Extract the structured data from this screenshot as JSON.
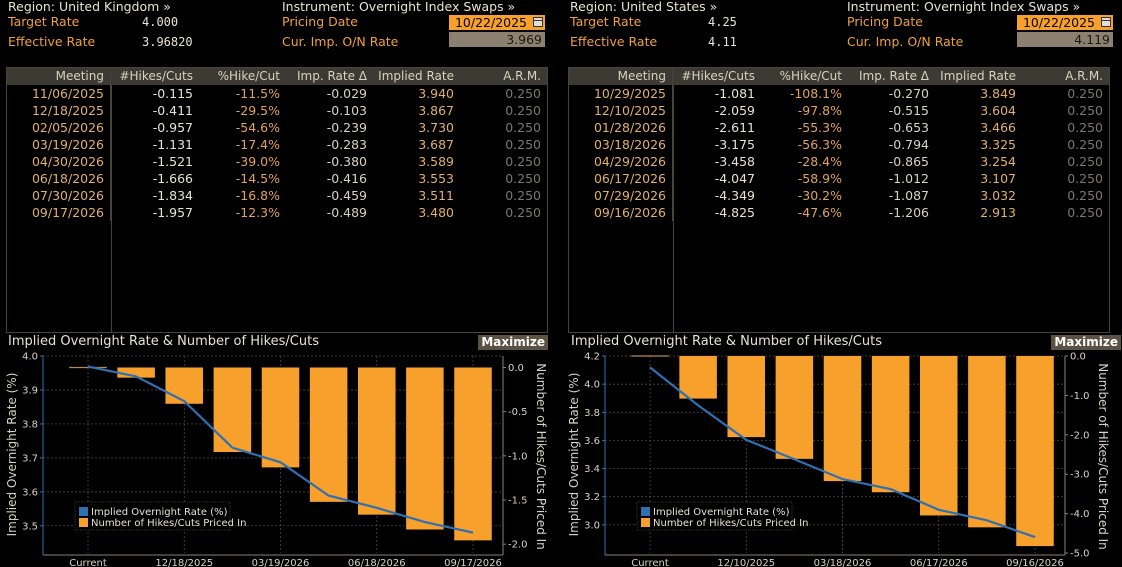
{
  "panels": [
    {
      "id": "uk",
      "region_label": "Region: United Kingdom »",
      "instrument_label": "Instrument: Overnight Index Swaps »",
      "target_rate_label": "Target Rate",
      "target_rate_value": "4.000",
      "effective_rate_label": "Effective Rate",
      "effective_rate_value": "3.96820",
      "pricing_date_label": "Pricing Date",
      "pricing_date_value": "10/22/2025",
      "cur_imp_label": "Cur. Imp. O/N Rate",
      "cur_imp_value": "3.969",
      "table": {
        "columns": [
          "Meeting",
          "#Hikes/Cuts",
          "%Hike/Cut",
          "Imp. Rate Δ",
          "Implied Rate",
          "A.R.M."
        ],
        "rows": [
          [
            "11/06/2025",
            "-0.115",
            "-11.5%",
            "-0.029",
            "3.940",
            "0.250"
          ],
          [
            "12/18/2025",
            "-0.411",
            "-29.5%",
            "-0.103",
            "3.867",
            "0.250"
          ],
          [
            "02/05/2026",
            "-0.957",
            "-54.6%",
            "-0.239",
            "3.730",
            "0.250"
          ],
          [
            "03/19/2026",
            "-1.131",
            "-17.4%",
            "-0.283",
            "3.687",
            "0.250"
          ],
          [
            "04/30/2026",
            "-1.521",
            "-39.0%",
            "-0.380",
            "3.589",
            "0.250"
          ],
          [
            "06/18/2026",
            "-1.666",
            "-14.5%",
            "-0.416",
            "3.553",
            "0.250"
          ],
          [
            "07/30/2026",
            "-1.834",
            "-16.8%",
            "-0.459",
            "3.511",
            "0.250"
          ],
          [
            "09/17/2026",
            "-1.957",
            "-12.3%",
            "-0.489",
            "3.480",
            "0.250"
          ]
        ]
      },
      "chart_title": "Implied Overnight Rate & Number of Hikes/Cuts",
      "maximize_label": "Maximize"
    },
    {
      "id": "us",
      "region_label": "Region: United States »",
      "instrument_label": "Instrument: Overnight Index Swaps »",
      "target_rate_label": "Target Rate",
      "target_rate_value": "4.25",
      "effective_rate_label": "Effective Rate",
      "effective_rate_value": "4.11",
      "pricing_date_label": "Pricing Date",
      "pricing_date_value": "10/22/2025",
      "cur_imp_label": "Cur. Imp. O/N Rate",
      "cur_imp_value": "4.119",
      "table": {
        "columns": [
          "Meeting",
          "#Hikes/Cuts",
          "%Hike/Cut",
          "Imp. Rate Δ",
          "Implied Rate",
          "A.R.M."
        ],
        "rows": [
          [
            "10/29/2025",
            "-1.081",
            "-108.1%",
            "-0.270",
            "3.849",
            "0.250"
          ],
          [
            "12/10/2025",
            "-2.059",
            "-97.8%",
            "-0.515",
            "3.604",
            "0.250"
          ],
          [
            "01/28/2026",
            "-2.611",
            "-55.3%",
            "-0.653",
            "3.466",
            "0.250"
          ],
          [
            "03/18/2026",
            "-3.175",
            "-56.3%",
            "-0.794",
            "3.325",
            "0.250"
          ],
          [
            "04/29/2026",
            "-3.458",
            "-28.4%",
            "-0.865",
            "3.254",
            "0.250"
          ],
          [
            "06/17/2026",
            "-4.047",
            "-58.9%",
            "-1.012",
            "3.107",
            "0.250"
          ],
          [
            "07/29/2026",
            "-4.349",
            "-30.2%",
            "-1.087",
            "3.032",
            "0.250"
          ],
          [
            "09/16/2026",
            "-4.825",
            "-47.6%",
            "-1.206",
            "2.913",
            "0.250"
          ]
        ]
      },
      "chart_title": "Implied Overnight Rate & Number of Hikes/Cuts",
      "maximize_label": "Maximize"
    }
  ],
  "colors": {
    "bar": "#f7a02b",
    "line": "#2f6fb3",
    "grid": "#5a5243",
    "axis": "#8c8170"
  },
  "chart_data": [
    {
      "type": "bar",
      "title": "Implied Overnight Rate & Number of Hikes/Cuts",
      "categories": [
        "Current",
        "11/06/2025",
        "12/18/2025",
        "02/05/2026",
        "03/19/2026",
        "04/30/2026",
        "06/18/2026",
        "07/30/2026",
        "09/17/2026"
      ],
      "x_tick_labels": [
        "Current",
        "12/18/2025",
        "03/19/2026",
        "06/18/2026",
        "09/17/2026"
      ],
      "series": [
        {
          "name": "Implied Overnight Rate (%)",
          "type": "line",
          "axis": "left",
          "values": [
            3.969,
            3.94,
            3.867,
            3.73,
            3.687,
            3.589,
            3.553,
            3.511,
            3.48
          ]
        },
        {
          "name": "Number of Hikes/Cuts Priced In",
          "type": "bar",
          "axis": "right",
          "values": [
            0,
            -0.115,
            -0.411,
            -0.957,
            -1.131,
            -1.521,
            -1.666,
            -1.834,
            -1.957
          ]
        }
      ],
      "ylabel": "Implied Overnight Rate (%)",
      "ylabel_right": "Number of Hikes/Cuts Priced In",
      "ylim": [
        3.42,
        4.0
      ],
      "yticks": [
        "4.0",
        "3.9",
        "3.8",
        "3.7",
        "3.6",
        "3.5"
      ],
      "ylim_right": [
        -2.1,
        0.13
      ],
      "yticks_right": [
        "0.0",
        "-0.5",
        "-1.0",
        "-1.5",
        "-2.0"
      ],
      "legend": "bottom-left",
      "grid": true
    },
    {
      "type": "bar",
      "title": "Implied Overnight Rate & Number of Hikes/Cuts",
      "categories": [
        "Current",
        "10/29/2025",
        "12/10/2025",
        "01/28/2026",
        "03/18/2026",
        "04/29/2026",
        "06/17/2026",
        "07/29/2026",
        "09/16/2026"
      ],
      "x_tick_labels": [
        "Current",
        "12/10/2025",
        "03/18/2026",
        "06/17/2026",
        "09/16/2026"
      ],
      "series": [
        {
          "name": "Implied Overnight Rate (%)",
          "type": "line",
          "axis": "left",
          "values": [
            4.119,
            3.849,
            3.604,
            3.466,
            3.325,
            3.254,
            3.107,
            3.032,
            2.913
          ]
        },
        {
          "name": "Number of Hikes/Cuts Priced In",
          "type": "bar",
          "axis": "right",
          "values": [
            0,
            -1.081,
            -2.059,
            -2.611,
            -3.175,
            -3.458,
            -4.047,
            -4.349,
            -4.825
          ]
        }
      ],
      "ylabel": "Implied Overnight Rate (%)",
      "ylabel_right": "Number of Hikes/Cuts Priced In",
      "ylim": [
        2.8,
        4.2
      ],
      "yticks": [
        "4.2",
        "4.0",
        "3.8",
        "3.6",
        "3.4",
        "3.2",
        "3.0"
      ],
      "ylim_right": [
        -5.0,
        0.0
      ],
      "yticks_right": [
        "0.0",
        "-1.0",
        "-2.0",
        "-3.0",
        "-4.0",
        "-5.0"
      ],
      "legend": "bottom-left",
      "grid": true
    }
  ]
}
